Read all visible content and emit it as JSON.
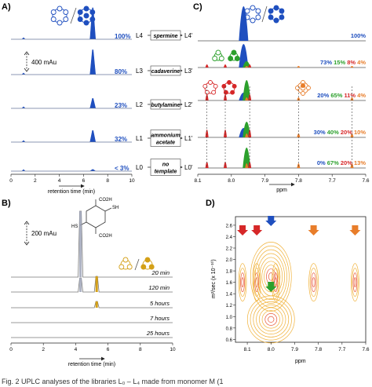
{
  "panels": {
    "A": {
      "label": "A)",
      "scale_text": "400 mAu",
      "x_axis_label": "retention time (min)",
      "x_ticks": [
        "0",
        "2",
        "4",
        "6",
        "8",
        "10"
      ],
      "rows": [
        {
          "percent": "100%",
          "ligand": "L4",
          "prime": "L4'",
          "template": [
            "spermine"
          ],
          "percent_color": "#1f4fbf",
          "peak_height": 0.95
        },
        {
          "percent": "80%",
          "ligand": "L3",
          "prime": "L3'",
          "template": [
            "cadaverine"
          ],
          "percent_color": "#1f4fbf",
          "peak_height": 0.75
        },
        {
          "percent": "23%",
          "ligand": "L2",
          "prime": "L2'",
          "template": [
            "butylamine"
          ],
          "percent_color": "#1f4fbf",
          "peak_height": 0.3
        },
        {
          "percent": "32%",
          "ligand": "L1",
          "prime": "L1'",
          "template": [
            "ammonium",
            "acetate"
          ],
          "percent_color": "#1f4fbf",
          "peak_height": 0.35
        },
        {
          "percent": "< 3%",
          "ligand": "L0",
          "prime": "L0'",
          "template": [
            "no",
            "template"
          ],
          "percent_color": "#1f4fbf",
          "peak_height": 0.05
        }
      ]
    },
    "B": {
      "label": "B)",
      "scale_text": "200 mAu",
      "x_axis_label": "retention time (min)",
      "x_ticks": [
        "0",
        "2",
        "4",
        "6",
        "8",
        "10"
      ],
      "chem_labels": [
        "CO2H",
        "SH",
        "HS",
        "CO2H"
      ],
      "traces": [
        "20 min",
        "120 min",
        "5 hours",
        "7 hours",
        "25 hours"
      ]
    },
    "C": {
      "label": "C)",
      "x_axis_label": "ppm",
      "x_ticks": [
        "8.1",
        "8.0",
        "7.9",
        "7.8",
        "7.7",
        "7.6"
      ],
      "rows": [
        {
          "parts": [
            {
              "t": "100%",
              "c": "#1f4fbf"
            }
          ]
        },
        {
          "parts": [
            {
              "t": "73% ",
              "c": "#1f4fbf"
            },
            {
              "t": "15% ",
              "c": "#2ca02c"
            },
            {
              "t": "8% ",
              "c": "#d62728"
            },
            {
              "t": "4%",
              "c": "#e87d2a"
            }
          ]
        },
        {
          "parts": [
            {
              "t": "20% ",
              "c": "#1f4fbf"
            },
            {
              "t": "65% ",
              "c": "#2ca02c"
            },
            {
              "t": "11% ",
              "c": "#d62728"
            },
            {
              "t": "4%",
              "c": "#e87d2a"
            }
          ]
        },
        {
          "parts": [
            {
              "t": "30% ",
              "c": "#1f4fbf"
            },
            {
              "t": "40% ",
              "c": "#2ca02c"
            },
            {
              "t": "20% ",
              "c": "#d62728"
            },
            {
              "t": "10%",
              "c": "#e87d2a"
            }
          ]
        },
        {
          "parts": [
            {
              "t": "0% ",
              "c": "#1f4fbf"
            },
            {
              "t": "67% ",
              "c": "#2ca02c"
            },
            {
              "t": "20% ",
              "c": "#d62728"
            },
            {
              "t": "13%",
              "c": "#e87d2a"
            }
          ]
        }
      ]
    },
    "D": {
      "label": "D)",
      "x_axis_label": "ppm",
      "y_axis_label": "m²/sec (x 10⁻¹⁰)",
      "x_ticks": [
        "8.1",
        "8.0",
        "7.9",
        "7.8",
        "7.7",
        "7.6"
      ],
      "y_ticks": [
        "2.6",
        "2.4",
        "2.2",
        "2.0",
        "1.8",
        "1.6",
        "1.4",
        "1.2",
        "1.0",
        "0.8",
        "0.6"
      ]
    }
  },
  "caption": "Fig. 2   UPLC analyses of the libraries L₀ – L₄ made from monomer M (1"
}
